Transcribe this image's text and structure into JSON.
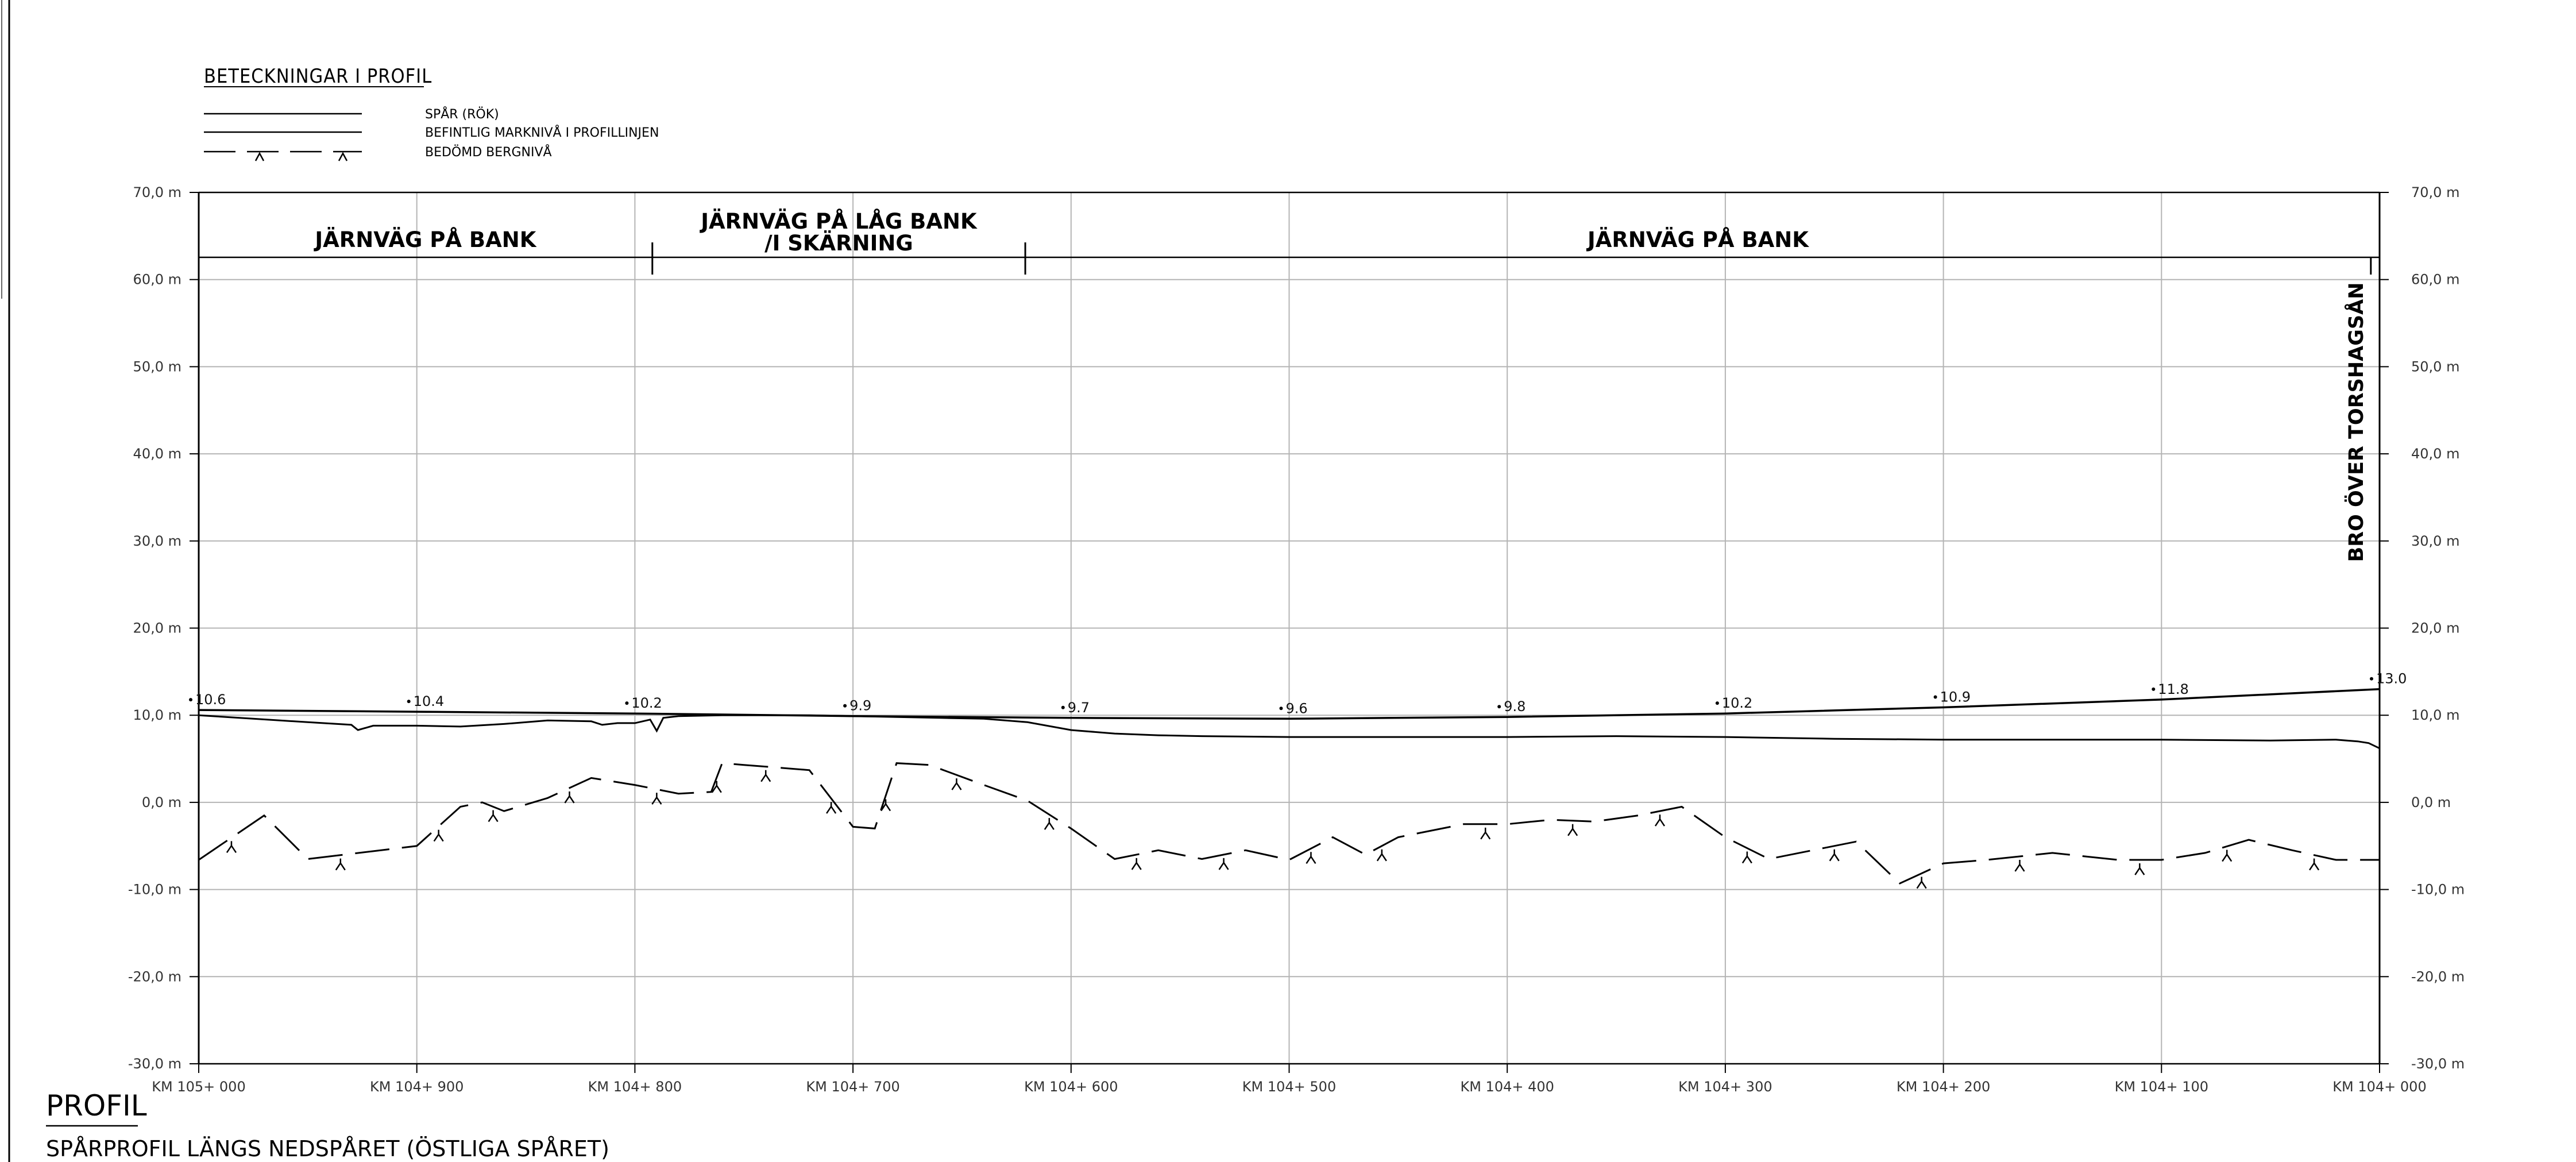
{
  "legend": {
    "title": "BETECKNINGAR I PROFIL",
    "items": [
      {
        "label": "SPÅR (RÖK)",
        "style": "solid"
      },
      {
        "label": "BEFINTLIG MARKNIVÅ I PROFILLINJEN",
        "style": "solid"
      },
      {
        "label": "BEDÖMD BERGNIVÅ",
        "style": "dashed-rock"
      }
    ]
  },
  "heading": "PROFIL",
  "subheading": "SPÅRPROFIL LÄNGS NEDSPÅRET (ÖSTLIGA SPÅRET)",
  "bridge_label": "BRO ÖVER TORSHAGSÅN",
  "colors": {
    "line": "#000000",
    "grid": "#b4b4b4",
    "text": "#333333"
  },
  "chart_data": {
    "type": "line",
    "xlabel": "",
    "ylabel": "",
    "x_unit": "m",
    "xlim": [
      105000,
      104000
    ],
    "ylim": [
      -30,
      70
    ],
    "grid": true,
    "y_ticks": [
      70,
      60,
      50,
      40,
      30,
      20,
      10,
      0,
      -10,
      -20,
      -30
    ],
    "y_tick_labels": [
      "70,0 m",
      "60,0 m",
      "50,0 m",
      "40,0 m",
      "30,0 m",
      "20,0 m",
      "10,0 m",
      "0,0 m",
      "-10,0 m",
      "-20,0 m",
      "-30,0 m"
    ],
    "x_ticks": [
      105000,
      104900,
      104800,
      104700,
      104600,
      104500,
      104400,
      104300,
      104200,
      104100,
      104000
    ],
    "x_tick_labels": [
      "KM 105+ 000",
      "KM 104+ 900",
      "KM 104+ 800",
      "KM 104+ 700",
      "KM 104+ 600",
      "KM 104+ 500",
      "KM 104+ 400",
      "KM 104+ 300",
      "KM 104+ 200",
      "KM 104+ 100",
      "KM 104+ 000"
    ],
    "sections": [
      {
        "label": "JÄRNVÄG PÅ BANK",
        "from": 105000,
        "to": 104792
      },
      {
        "label": "JÄRNVÄG PÅ LÅG BANK\n/I SKÄRNING",
        "from": 104792,
        "to": 104621
      },
      {
        "label": "JÄRNVÄG PÅ BANK",
        "from": 104621,
        "to": 104004
      }
    ],
    "elevation_labels": [
      {
        "km": 105000,
        "value": "10.6",
        "y": 10.6
      },
      {
        "km": 104900,
        "value": "10.4",
        "y": 10.4
      },
      {
        "km": 104800,
        "value": "10.2",
        "y": 10.2
      },
      {
        "km": 104700,
        "value": "9.9",
        "y": 9.9
      },
      {
        "km": 104600,
        "value": "9.7",
        "y": 9.7
      },
      {
        "km": 104500,
        "value": "9.6",
        "y": 9.6
      },
      {
        "km": 104400,
        "value": "9.8",
        "y": 9.8
      },
      {
        "km": 104300,
        "value": "10.2",
        "y": 10.2
      },
      {
        "km": 104200,
        "value": "10.9",
        "y": 10.9
      },
      {
        "km": 104100,
        "value": "11.8",
        "y": 11.8
      },
      {
        "km": 104000,
        "value": "13.0",
        "y": 13.0
      }
    ],
    "series": [
      {
        "name": "SPÅR (RÖK)",
        "style": "solid",
        "x": [
          105000,
          104900,
          104800,
          104700,
          104600,
          104500,
          104400,
          104300,
          104200,
          104100,
          104000
        ],
        "y": [
          10.6,
          10.4,
          10.2,
          9.9,
          9.7,
          9.6,
          9.8,
          10.2,
          10.9,
          11.8,
          13.0
        ]
      },
      {
        "name": "BEFINTLIG MARKNIVÅ I PROFILLINJEN",
        "style": "solid",
        "x": [
          105000,
          104975,
          104950,
          104930,
          104927,
          104920,
          104900,
          104880,
          104860,
          104840,
          104820,
          104815,
          104808,
          104800,
          104793,
          104790,
          104787,
          104780,
          104760,
          104740,
          104720,
          104700,
          104680,
          104660,
          104640,
          104620,
          104600,
          104580,
          104560,
          104540,
          104500,
          104450,
          104400,
          104350,
          104300,
          104250,
          104200,
          104150,
          104100,
          104050,
          104020,
          104010,
          104005,
          104000
        ],
        "y": [
          10.0,
          9.6,
          9.2,
          8.9,
          8.3,
          8.8,
          8.8,
          8.7,
          9.0,
          9.4,
          9.3,
          8.9,
          9.1,
          9.1,
          9.5,
          8.2,
          9.7,
          9.9,
          10.0,
          10.0,
          10.0,
          9.9,
          9.8,
          9.7,
          9.6,
          9.2,
          8.3,
          7.9,
          7.7,
          7.6,
          7.5,
          7.5,
          7.5,
          7.6,
          7.5,
          7.3,
          7.2,
          7.2,
          7.2,
          7.1,
          7.2,
          7.0,
          6.8,
          6.2
        ]
      },
      {
        "name": "BEDÖMD BERGNIVÅ",
        "style": "dashed-rock",
        "x": [
          105000,
          104970,
          104950,
          104920,
          104900,
          104880,
          104870,
          104860,
          104840,
          104820,
          104800,
          104780,
          104765,
          104760,
          104750,
          104730,
          104720,
          104700,
          104690,
          104680,
          104665,
          104640,
          104620,
          104600,
          104580,
          104560,
          104540,
          104520,
          104500,
          104480,
          104465,
          104450,
          104420,
          104400,
          104380,
          104360,
          104340,
          104320,
          104300,
          104280,
          104260,
          104240,
          104220,
          104200,
          104180,
          104150,
          104120,
          104100,
          104080,
          104060,
          104040,
          104020,
          104000
        ],
        "y": [
          -6.6,
          -1.5,
          -6.5,
          -5.6,
          -5.0,
          -0.5,
          0.0,
          -1.0,
          0.5,
          2.8,
          2.0,
          1.0,
          1.2,
          4.5,
          4.3,
          3.9,
          3.7,
          -2.8,
          -3.0,
          4.5,
          4.3,
          2.0,
          0.2,
          -3.0,
          -6.5,
          -5.5,
          -6.5,
          -5.5,
          -6.6,
          -4.0,
          -6.0,
          -4.0,
          -2.5,
          -2.5,
          -2.0,
          -2.2,
          -1.5,
          -0.5,
          -4.0,
          -6.5,
          -5.5,
          -4.5,
          -9.3,
          -7.0,
          -6.6,
          -5.8,
          -6.6,
          -6.6,
          -5.8,
          -4.3,
          -5.5,
          -6.6,
          -6.6
        ]
      }
    ],
    "bridge": {
      "label": "BRO ÖVER TORSHAGSÅN",
      "km": 104004
    }
  }
}
